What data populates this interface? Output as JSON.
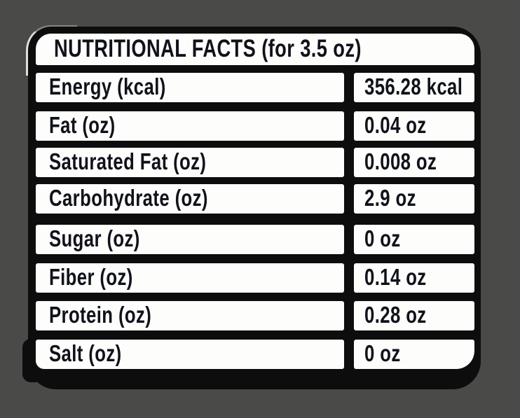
{
  "page": {
    "background_color": "#4a4a48"
  },
  "label": {
    "card_color": "#0d0d0d",
    "cell_color": "#fdfdfc",
    "text_color": "#10121a",
    "title": "NUTRITIONAL FACTS (for 3.5 oz)",
    "rows": [
      {
        "label": "Energy (kcal)",
        "value": "356.28 kcal"
      },
      {
        "label": "Fat (oz)",
        "value": "0.04 oz"
      },
      {
        "label": "Saturated Fat (oz)",
        "value": "0.008 oz"
      },
      {
        "label": "Carbohydrate (oz)",
        "value": "2.9 oz"
      },
      {
        "label": "Sugar (oz)",
        "value": "0 oz"
      },
      {
        "label": "Fiber (oz)",
        "value": "0.14 oz"
      },
      {
        "label": "Protein (oz)",
        "value": "0.28 oz"
      },
      {
        "label": "Salt (oz)",
        "value": "0 oz"
      }
    ]
  }
}
